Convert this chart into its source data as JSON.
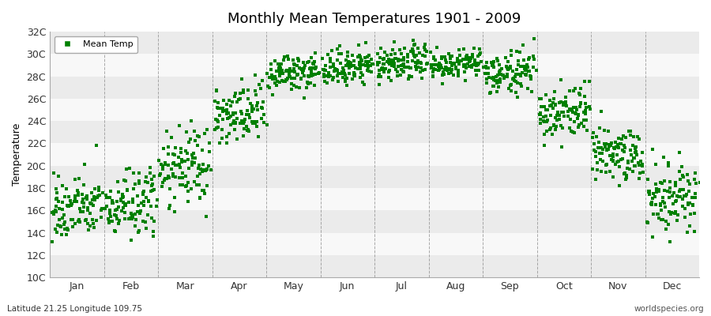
{
  "title": "Monthly Mean Temperatures 1901 - 2009",
  "ylabel": "Temperature",
  "footer_left": "Latitude 21.25 Longitude 109.75",
  "footer_right": "worldspecies.org",
  "legend_label": "Mean Temp",
  "ylim": [
    10,
    32
  ],
  "yticks": [
    10,
    12,
    14,
    16,
    18,
    20,
    22,
    24,
    26,
    28,
    30,
    32
  ],
  "ytick_labels": [
    "10C",
    "12C",
    "14C",
    "16C",
    "18C",
    "20C",
    "22C",
    "24C",
    "26C",
    "28C",
    "30C",
    "32C"
  ],
  "months": [
    "Jan",
    "Feb",
    "Mar",
    "Apr",
    "May",
    "Jun",
    "Jul",
    "Aug",
    "Sep",
    "Oct",
    "Nov",
    "Dec"
  ],
  "month_means": [
    16.2,
    16.5,
    19.8,
    24.5,
    28.2,
    28.8,
    29.1,
    29.0,
    28.3,
    24.8,
    21.0,
    17.2
  ],
  "month_stds": [
    1.4,
    1.5,
    1.7,
    1.4,
    0.8,
    0.8,
    0.8,
    0.7,
    0.9,
    1.2,
    1.3,
    1.5
  ],
  "n_years": 109,
  "marker_color": "#008000",
  "marker_size": 10,
  "bg_color": "#FFFFFF",
  "plot_bg_color": "#FFFFFF",
  "hband_colors": [
    "#EBEBEB",
    "#F8F8F8"
  ],
  "grid_color": "#888888",
  "random_seed": 42
}
